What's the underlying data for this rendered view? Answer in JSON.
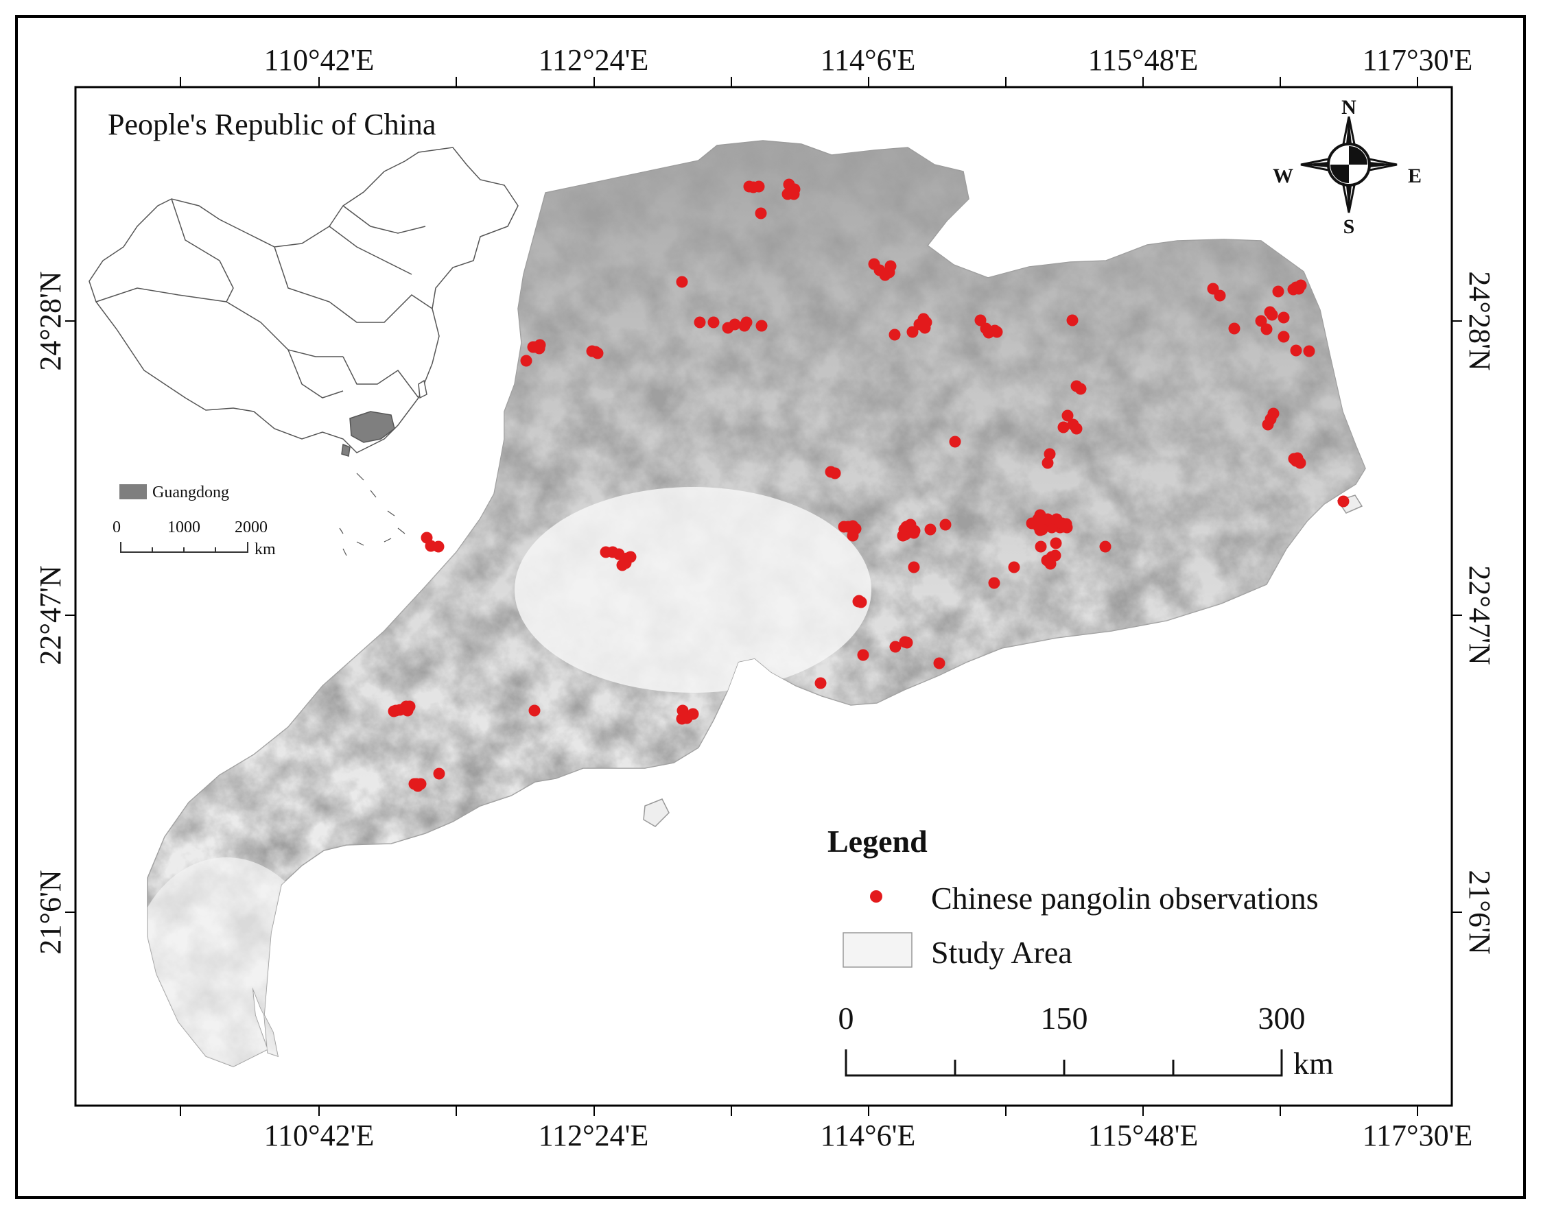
{
  "map": {
    "top_lon_labels": [
      "110°42'E",
      "112°24'E",
      "114°6'E",
      "115°48'E",
      "117°30'E"
    ],
    "bottom_lon_labels": [
      "110°42'E",
      "112°24'E",
      "114°6'E",
      "115°48'E",
      "117°30'E"
    ],
    "left_lat_labels": [
      "24°28'N",
      "22°47'N",
      "21°6'N"
    ],
    "right_lat_labels": [
      "24°28'N",
      "22°47'N",
      "21°6'N"
    ]
  },
  "inset": {
    "title": "People's Republic of China",
    "highlight_label": "Guangdong",
    "scale_labels": [
      "0",
      "1000",
      "2000"
    ],
    "scale_unit": "km"
  },
  "compass": {
    "n": "N",
    "s": "S",
    "e": "E",
    "w": "W"
  },
  "legend": {
    "title": "Legend",
    "observation_label": "Chinese pangolin observations",
    "study_area_label": "Study Area",
    "observation_color": "#e31a1c"
  },
  "scalebar": {
    "labels": [
      "0",
      "150",
      "300"
    ],
    "unit": "km"
  }
}
